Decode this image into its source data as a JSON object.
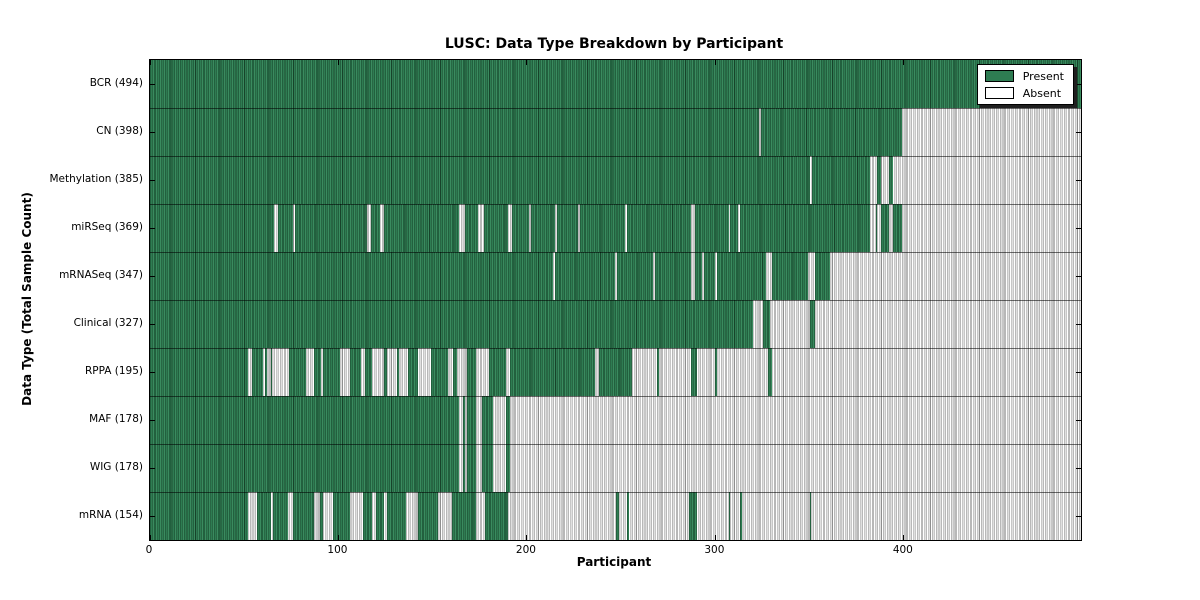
{
  "chart_data": {
    "type": "heatmap",
    "title": "LUSC: Data Type Breakdown by Participant",
    "xlabel": "Participant",
    "ylabel": "Data Type (Total Sample Count)",
    "legend": {
      "present": "Present",
      "absent": "Absent"
    },
    "legend_position": "upper right",
    "grid": false,
    "x_ticks": [
      0,
      100,
      200,
      300,
      400
    ],
    "x_range": [
      0,
      494
    ],
    "n_participants": 494,
    "colors": {
      "present": "#2e7c52",
      "present_dark": "#17432a",
      "present_light": "#3a8b5f",
      "absent": "#ffffff",
      "absent_line": "#8f8f8f",
      "absent_alt": "#e0e0e0",
      "row_separator": "#333333",
      "frame": "#000000"
    },
    "rows": [
      {
        "data_type": "BCR",
        "count": 494,
        "label": "BCR (494)",
        "present_ranges": [
          [
            0,
            494
          ]
        ]
      },
      {
        "data_type": "CN",
        "count": 398,
        "label": "CN (398)",
        "present_ranges": [
          [
            0,
            323
          ],
          [
            324,
            399
          ]
        ]
      },
      {
        "data_type": "Methylation",
        "count": 385,
        "label": "Methylation (385)",
        "present_ranges": [
          [
            0,
            350
          ],
          [
            351,
            382
          ],
          [
            386,
            388
          ],
          [
            392,
            394
          ]
        ]
      },
      {
        "data_type": "miRSeq",
        "count": 369,
        "label": "miRSeq (369)",
        "present_ranges": [
          [
            0,
            66
          ],
          [
            68,
            76
          ],
          [
            77,
            115
          ],
          [
            117,
            122
          ],
          [
            124,
            164
          ],
          [
            167,
            174
          ],
          [
            177,
            190
          ],
          [
            192,
            201
          ],
          [
            202,
            215
          ],
          [
            216,
            227
          ],
          [
            228,
            252
          ],
          [
            253,
            287
          ],
          [
            289,
            307
          ],
          [
            308,
            312
          ],
          [
            313,
            382
          ],
          [
            385,
            386
          ],
          [
            388,
            392
          ],
          [
            394,
            399
          ]
        ]
      },
      {
        "data_type": "mRNASeq",
        "count": 347,
        "label": "mRNASeq (347)",
        "present_ranges": [
          [
            0,
            214
          ],
          [
            215,
            247
          ],
          [
            248,
            267
          ],
          [
            268,
            287
          ],
          [
            289,
            293
          ],
          [
            294,
            300
          ],
          [
            301,
            327
          ],
          [
            330,
            349
          ],
          [
            353,
            361
          ]
        ]
      },
      {
        "data_type": "Clinical",
        "count": 327,
        "label": "Clinical (327)",
        "present_ranges": [
          [
            0,
            320
          ],
          [
            325,
            329
          ],
          [
            350,
            353
          ]
        ]
      },
      {
        "data_type": "RPPA",
        "count": 195,
        "label": "RPPA (195)",
        "present_ranges": [
          [
            0,
            52
          ],
          [
            54,
            60
          ],
          [
            61,
            62
          ],
          [
            64,
            65
          ],
          [
            74,
            83
          ],
          [
            87,
            91
          ],
          [
            92,
            101
          ],
          [
            106,
            112
          ],
          [
            114,
            118
          ],
          [
            124,
            126
          ],
          [
            131,
            132
          ],
          [
            137,
            142
          ],
          [
            149,
            158
          ],
          [
            161,
            163
          ],
          [
            168,
            173
          ],
          [
            180,
            189
          ],
          [
            191,
            236
          ],
          [
            238,
            256
          ],
          [
            269,
            270
          ],
          [
            287,
            290
          ],
          [
            300,
            301
          ],
          [
            328,
            330
          ]
        ]
      },
      {
        "data_type": "MAF",
        "count": 178,
        "label": "MAF (178)",
        "present_ranges": [
          [
            0,
            164
          ],
          [
            166,
            167
          ],
          [
            168,
            173
          ],
          [
            176,
            182
          ],
          [
            189,
            191
          ]
        ]
      },
      {
        "data_type": "WIG",
        "count": 178,
        "label": "WIG (178)",
        "present_ranges": [
          [
            0,
            164
          ],
          [
            166,
            167
          ],
          [
            168,
            173
          ],
          [
            176,
            182
          ],
          [
            189,
            191
          ]
        ]
      },
      {
        "data_type": "mRNA",
        "count": 154,
        "label": "mRNA (154)",
        "present_ranges": [
          [
            0,
            52
          ],
          [
            57,
            64
          ],
          [
            65,
            73
          ],
          [
            76,
            87
          ],
          [
            90,
            92
          ],
          [
            97,
            106
          ],
          [
            113,
            118
          ],
          [
            120,
            124
          ],
          [
            126,
            136
          ],
          [
            142,
            153
          ],
          [
            160,
            173
          ],
          [
            178,
            190
          ],
          [
            247,
            249
          ],
          [
            253,
            254
          ],
          [
            286,
            290
          ],
          [
            307,
            308
          ],
          [
            313,
            314
          ],
          [
            350,
            351
          ]
        ]
      }
    ]
  }
}
